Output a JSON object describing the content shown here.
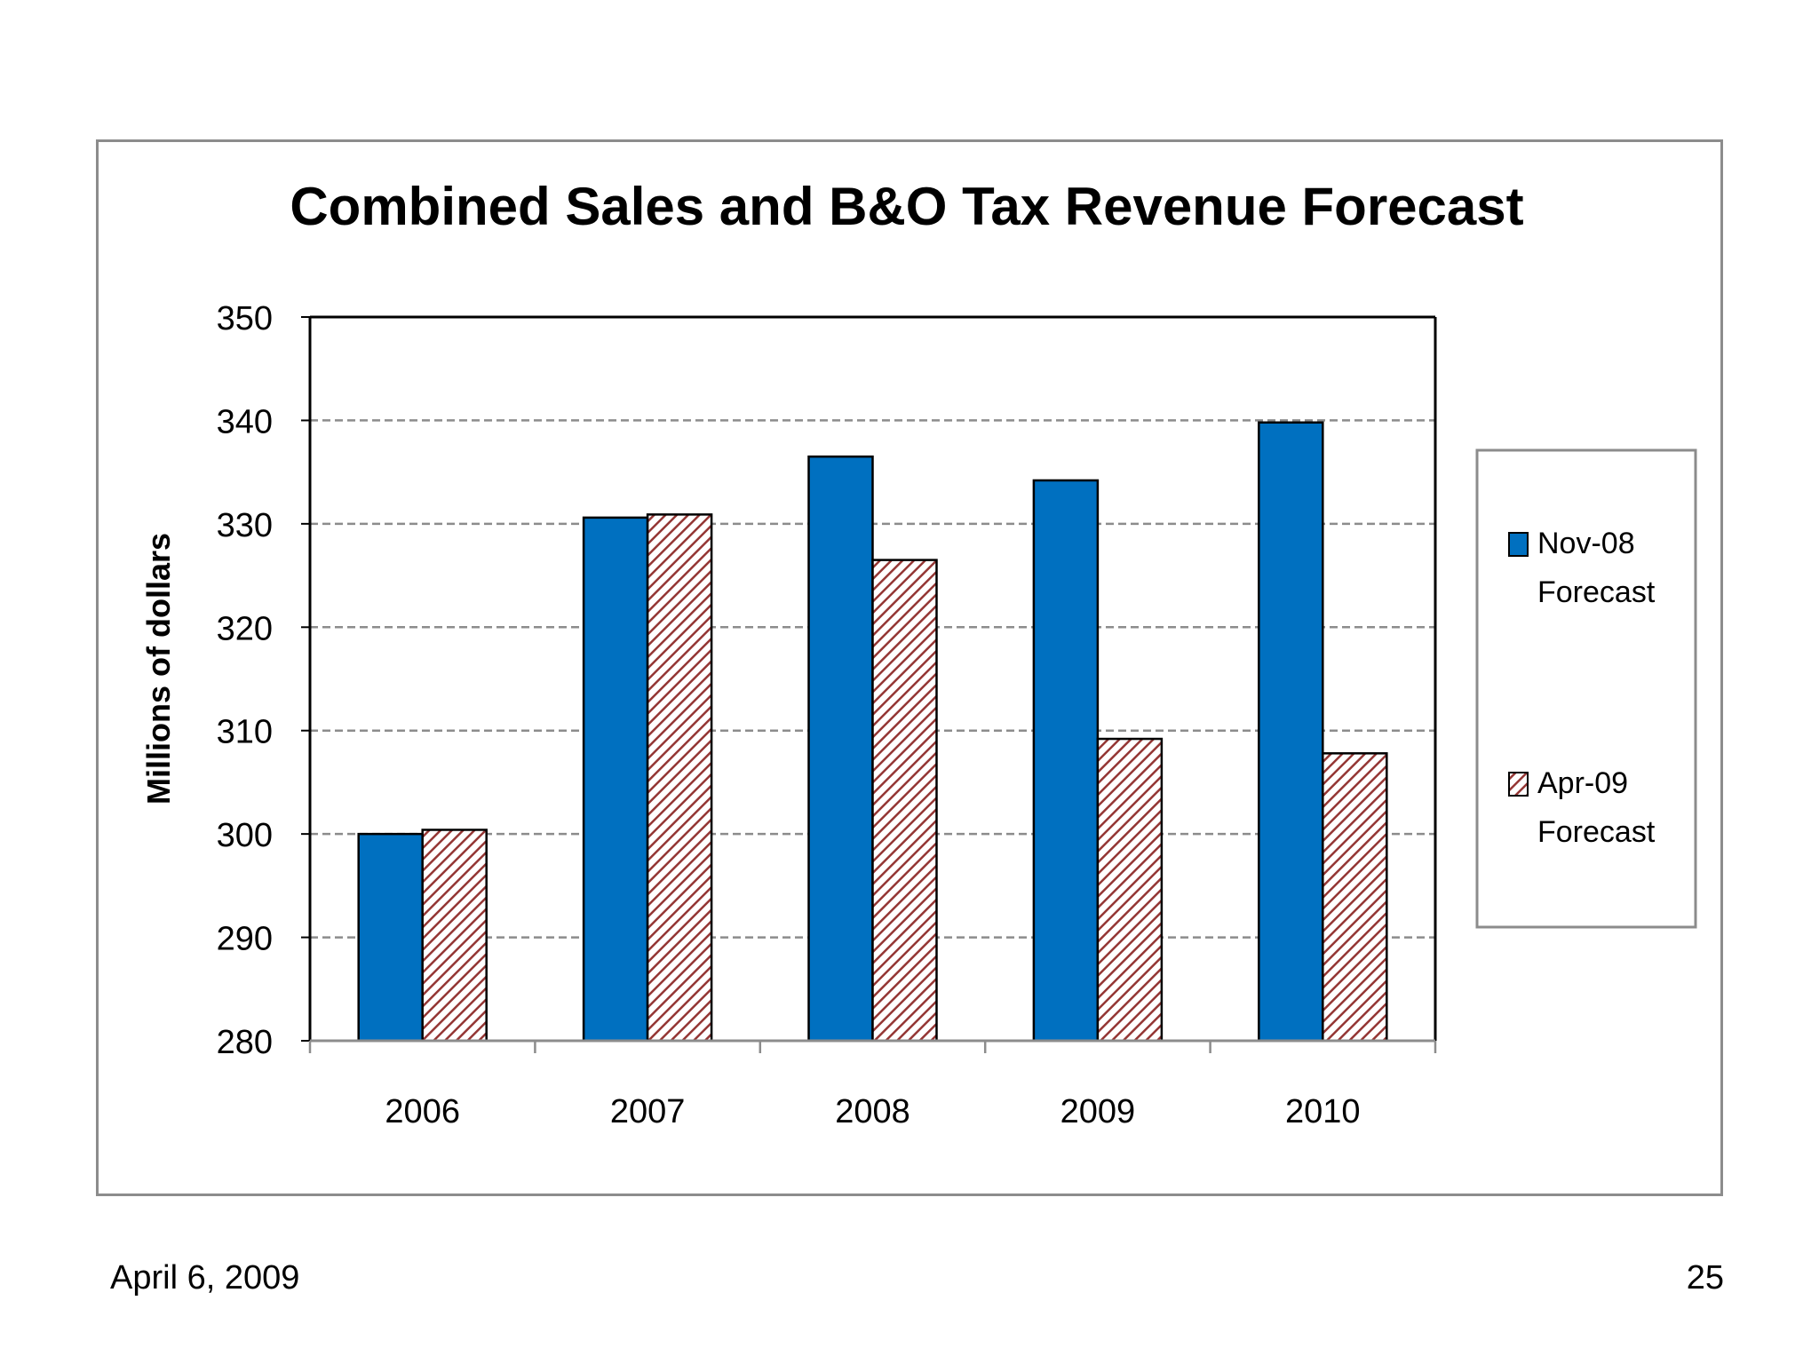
{
  "chart_data": {
    "type": "bar",
    "title": "Combined Sales and B&O Tax Revenue Forecast",
    "xlabel": "",
    "ylabel": "Millions  of dollars",
    "ylim": [
      280,
      350
    ],
    "yticks": [
      "280",
      "290",
      "300",
      "310",
      "320",
      "330",
      "340",
      "350"
    ],
    "grid": true,
    "legend_position": "right",
    "categories": [
      "2006",
      "2007",
      "2008",
      "2009",
      "2010"
    ],
    "series": [
      {
        "name": "Nov-08 Forecast",
        "legend_lines": [
          "Nov-08",
          "Forecast"
        ],
        "color": "#0070c0",
        "pattern": "solid",
        "values": [
          300.0,
          330.6,
          336.5,
          334.2,
          339.8
        ]
      },
      {
        "name": "Apr-09 Forecast",
        "legend_lines": [
          "Apr-09",
          "Forecast"
        ],
        "color": "#943634",
        "pattern": "diagonal-hatch",
        "values": [
          300.4,
          330.9,
          326.5,
          309.2,
          307.8
        ]
      }
    ]
  },
  "footer": {
    "date": "April 6, 2009",
    "page_number": "25"
  }
}
